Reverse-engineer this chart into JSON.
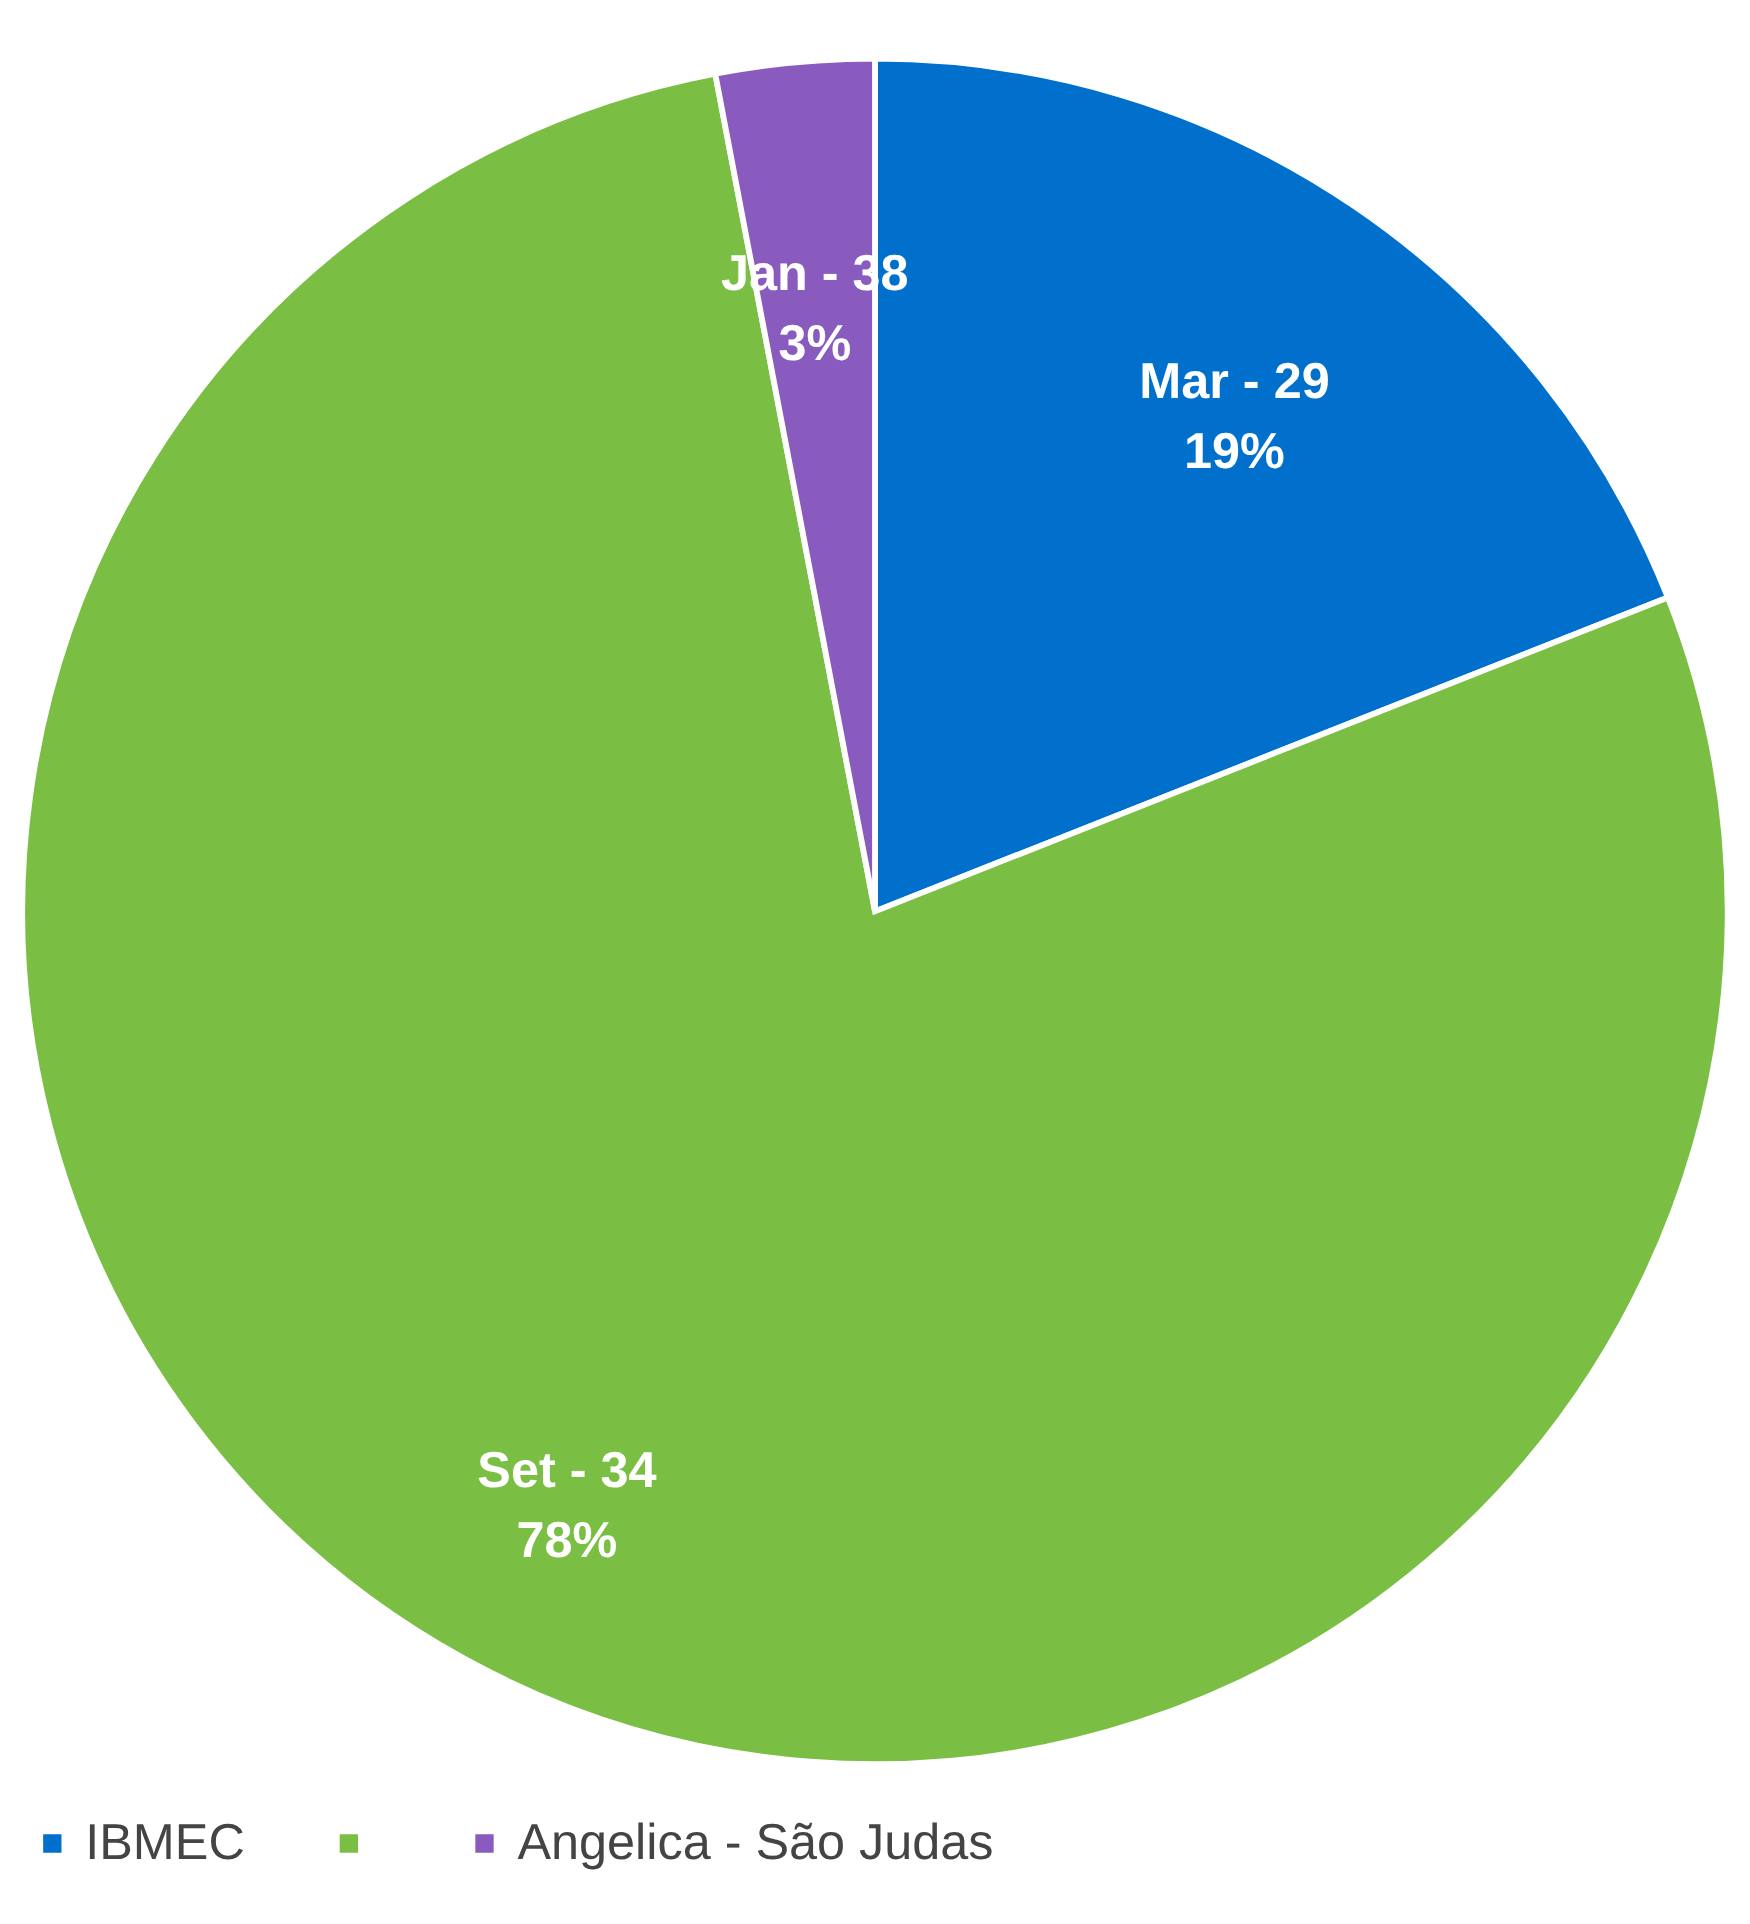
{
  "chart_data": {
    "type": "pie",
    "categories": [
      "IBMEC",
      null,
      "Angelica - São Judas"
    ],
    "values": [
      19,
      78,
      3
    ],
    "colors": [
      "#0070cc",
      "#7abf43",
      "#8a5bbf"
    ],
    "value_labels": [
      "19%",
      "78%",
      "3%"
    ],
    "annotations": [
      "Mar - 29",
      "Set - 34",
      "Jan - 38"
    ],
    "legend": "bottom"
  }
}
